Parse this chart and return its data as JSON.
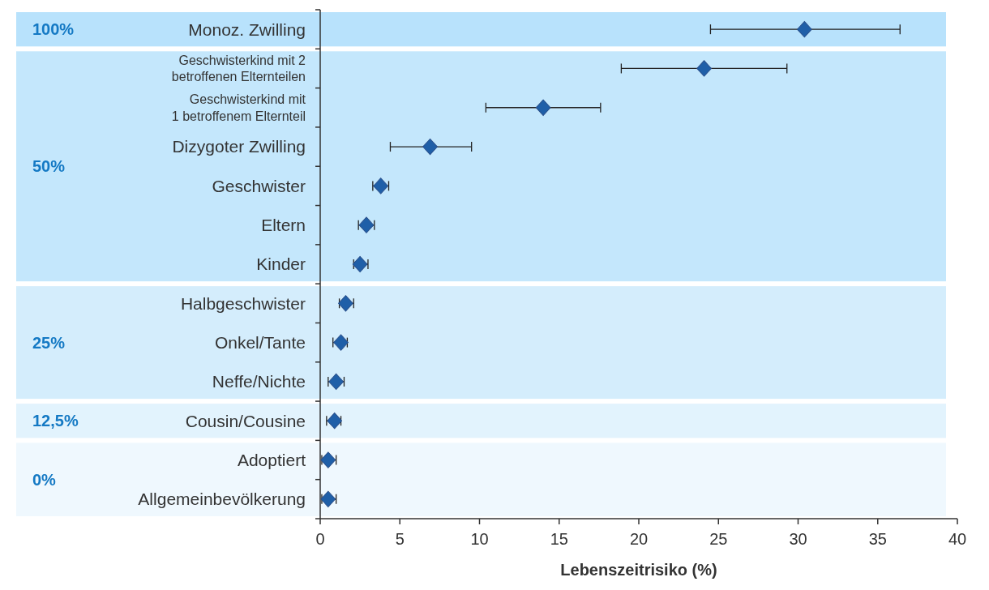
{
  "chart_data": {
    "type": "scatter",
    "orientation": "horizontal",
    "xlabel": "Lebenszeitrisiko (%)",
    "categories": [
      "Monoz. Zwilling",
      "Geschwisterkind mit 2\nbetroffenen Elternteilen",
      "Geschwisterkind mit\n1 betroffenem Elternteil",
      "Dizygoter Zwilling",
      "Geschwister",
      "Eltern",
      "Kinder",
      "Halbgeschwister",
      "Onkel/Tante",
      "Neffe/Nichte",
      "Cousin/Cousine",
      "Adoptiert",
      "Allgemeinbevölkerung"
    ],
    "series": [
      {
        "color": "#1f5fa8",
        "values": [
          30.4,
          24.1,
          14.0,
          6.9,
          3.8,
          2.9,
          2.5,
          1.6,
          1.3,
          1.0,
          0.9,
          0.5,
          0.5
        ],
        "errors": [
          [
            24.5,
            36.4
          ],
          [
            18.9,
            29.3
          ],
          [
            10.4,
            17.6
          ],
          [
            4.4,
            9.5
          ],
          [
            3.3,
            4.3
          ],
          [
            2.4,
            3.4
          ],
          [
            2.1,
            3.0
          ],
          [
            1.2,
            2.1
          ],
          [
            0.8,
            1.7
          ],
          [
            0.5,
            1.5
          ],
          [
            0.4,
            1.3
          ],
          [
            0.1,
            1.0
          ],
          [
            0.1,
            1.0
          ]
        ]
      }
    ],
    "xlim": [
      0,
      40
    ],
    "xticks": [
      0,
      5,
      10,
      15,
      20,
      25,
      30,
      35,
      40
    ],
    "marker": "diamond",
    "grid": false,
    "bands": [
      {
        "axis": "y",
        "from": "Monoz. Zwilling",
        "to": "Monoz. Zwilling",
        "label": "100%",
        "color": "#b8e2fc"
      },
      {
        "axis": "y",
        "from": "Geschwisterkind mit 2\nbetroffenen Elternteilen",
        "to": "Kinder",
        "label": "50%",
        "color": "#c4e7fc"
      },
      {
        "axis": "y",
        "from": "Halbgeschwister",
        "to": "Neffe/Nichte",
        "label": "25%",
        "color": "#d4edfc"
      },
      {
        "axis": "y",
        "from": "Cousin/Cousine",
        "to": "Cousin/Cousine",
        "label": "12,5%",
        "color": "#e2f3fd"
      },
      {
        "axis": "y",
        "from": "Adoptiert",
        "to": "Allgemeinbevölkerung",
        "label": "0%",
        "color": "#eff8fe"
      }
    ]
  }
}
